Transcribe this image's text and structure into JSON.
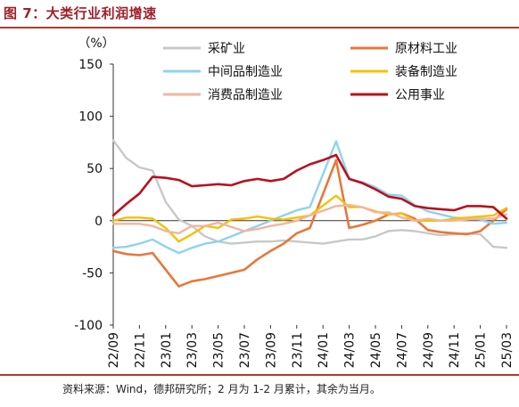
{
  "figure_title": "图 7：大类行业利润增速",
  "source_note": "资料来源：Wind，德邦研究所；2 月为 1-2 月累计，其余为当月。",
  "chart_data": {
    "type": "line",
    "ylabel": "（%）",
    "xlabel": "",
    "ylim": [
      -100,
      150
    ],
    "yticks": [
      -100,
      -50,
      0,
      50,
      100,
      150
    ],
    "grid": false,
    "legend_position": "top, two columns",
    "x": [
      "22/09",
      "22/10",
      "22/11",
      "22/12",
      "23/01",
      "23/02",
      "23/03",
      "23/04",
      "23/05",
      "23/06",
      "23/07",
      "23/08",
      "23/09",
      "23/10",
      "23/11",
      "23/12",
      "24/01",
      "24/02",
      "24/03",
      "24/04",
      "24/05",
      "24/06",
      "24/07",
      "24/08",
      "24/09",
      "24/10",
      "24/11",
      "24/12",
      "25/01",
      "25/02",
      "25/03"
    ],
    "xtick_labels": [
      "22/09",
      "22/11",
      "23/01",
      "23/03",
      "23/05",
      "23/07",
      "23/09",
      "23/11",
      "24/01",
      "24/03",
      "24/05",
      "24/07",
      "24/09",
      "24/11",
      "25/01",
      "25/03"
    ],
    "series": [
      {
        "name": "采矿业",
        "color": "#c8c8c8",
        "values": [
          77,
          60,
          51,
          48,
          18,
          1,
          -5,
          -15,
          -20,
          -22,
          -21,
          -20,
          -20,
          -19,
          -20,
          -21,
          -22,
          null,
          -18,
          -18,
          -15,
          -10,
          -9,
          -10,
          -12,
          -14,
          -13,
          -12,
          -13,
          -25,
          -26
        ]
      },
      {
        "name": "原材料工业",
        "color": "#e8773a",
        "values": [
          -29,
          -32,
          -33,
          -31,
          null,
          -63,
          -58,
          -56,
          -53,
          -50,
          -47,
          -37,
          -29,
          -22,
          -12,
          -7,
          null,
          58,
          -7,
          -4,
          0,
          6,
          7,
          2,
          -9,
          -11,
          -12,
          -13,
          -10,
          0,
          11
        ]
      },
      {
        "name": "中间品制造业",
        "color": "#8dd3f0",
        "values": [
          -26,
          -25,
          -22,
          -18,
          -25,
          -31,
          -26,
          -22,
          -20,
          -15,
          -10,
          -5,
          0,
          5,
          10,
          13,
          null,
          76,
          40,
          37,
          32,
          25,
          24,
          15,
          9,
          6,
          3,
          2,
          1,
          -3,
          -2
        ]
      },
      {
        "name": "装备制造业",
        "color": "#f5c000",
        "values": [
          0,
          3,
          3,
          2,
          -7,
          -20,
          -13,
          -5,
          -7,
          1,
          2,
          4,
          2,
          1,
          3,
          5,
          null,
          24,
          13,
          13,
          9,
          6,
          7,
          0,
          0,
          0,
          2,
          3,
          4,
          5,
          12
        ]
      },
      {
        "name": "消费品制造业",
        "color": "#f2b5a0",
        "values": [
          -3,
          -3,
          -3,
          -5,
          -10,
          -12,
          -5,
          -5,
          -2,
          -6,
          -10,
          -8,
          -5,
          -3,
          0,
          5,
          null,
          14,
          15,
          13,
          8,
          8,
          3,
          0,
          2,
          0,
          0,
          1,
          2,
          2,
          6
        ]
      },
      {
        "name": "公用事业",
        "color": "#b8111c",
        "values": [
          5,
          16,
          26,
          42,
          41,
          39,
          33,
          34,
          35,
          34,
          38,
          40,
          38,
          40,
          48,
          54,
          58,
          63,
          40,
          36,
          30,
          23,
          21,
          14,
          12,
          11,
          10,
          14,
          14,
          13,
          2
        ]
      }
    ]
  }
}
